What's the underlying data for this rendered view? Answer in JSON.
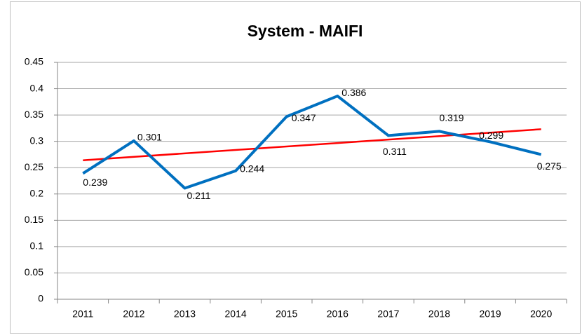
{
  "chart_data": {
    "type": "line",
    "title": "System - MAIFI",
    "categories": [
      "2011",
      "2012",
      "2013",
      "2014",
      "2015",
      "2016",
      "2017",
      "2018",
      "2019",
      "2020"
    ],
    "series": [
      {
        "color": "#0070c0",
        "values": [
          0.239,
          0.301,
          0.211,
          0.244,
          0.347,
          0.386,
          0.311,
          0.319,
          0.299,
          0.275
        ]
      }
    ],
    "trendline": {
      "color": "#ff0000",
      "values": [
        0.264,
        0.323
      ]
    },
    "ylim": [
      0,
      0.45
    ],
    "yticks": [
      0,
      0.05,
      0.1,
      0.15,
      0.2,
      0.25,
      0.3,
      0.35,
      0.4,
      0.45
    ],
    "grid": true
  }
}
